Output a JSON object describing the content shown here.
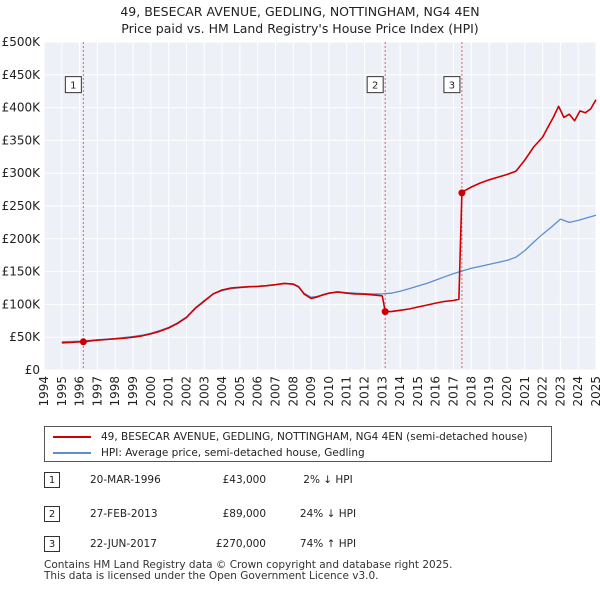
{
  "title": {
    "line1": "49, BESECAR AVENUE, GEDLING, NOTTINGHAM, NG4 4EN",
    "line2": "Price paid vs. HM Land Registry's House Price Index (HPI)"
  },
  "chart_data": {
    "type": "line",
    "title": "49, BESECAR AVENUE, GEDLING, NOTTINGHAM, NG4 4EN — Price paid vs. HM Land Registry's House Price Index (HPI)",
    "x_range": [
      1994,
      2025
    ],
    "ylim": [
      0,
      500000
    ],
    "y_ticks": [
      {
        "value": 0,
        "label": "£0"
      },
      {
        "value": 50000,
        "label": "£50K"
      },
      {
        "value": 100000,
        "label": "£100K"
      },
      {
        "value": 150000,
        "label": "£150K"
      },
      {
        "value": 200000,
        "label": "£200K"
      },
      {
        "value": 250000,
        "label": "£250K"
      },
      {
        "value": 300000,
        "label": "£300K"
      },
      {
        "value": 350000,
        "label": "£350K"
      },
      {
        "value": 400000,
        "label": "£400K"
      },
      {
        "value": 450000,
        "label": "£450K"
      },
      {
        "value": 500000,
        "label": "£500K"
      }
    ],
    "x_ticks": [
      "1994",
      "1995",
      "1996",
      "1997",
      "1998",
      "1999",
      "2000",
      "2001",
      "2002",
      "2003",
      "2004",
      "2005",
      "2006",
      "2007",
      "2008",
      "2009",
      "2010",
      "2011",
      "2012",
      "2013",
      "2014",
      "2015",
      "2016",
      "2017",
      "2018",
      "2019",
      "2020",
      "2021",
      "2022",
      "2023",
      "2024",
      "2025"
    ],
    "grid": true,
    "series": [
      {
        "name": "49, BESECAR AVENUE, GEDLING, NOTTINGHAM, NG4 4EN (semi-detached house)",
        "color": "#cc0000",
        "x": [
          1995.0,
          1995.5,
          1996.0,
          1996.21,
          1996.5,
          1997.0,
          1997.5,
          1998.0,
          1998.5,
          1999.0,
          1999.5,
          2000.0,
          2000.5,
          2001.0,
          2001.5,
          2002.0,
          2002.5,
          2003.0,
          2003.5,
          2004.0,
          2004.5,
          2005.0,
          2005.5,
          2006.0,
          2006.5,
          2007.0,
          2007.5,
          2008.0,
          2008.3,
          2008.6,
          2009.0,
          2009.3,
          2009.6,
          2010.0,
          2010.5,
          2011.0,
          2011.5,
          2012.0,
          2012.5,
          2013.0,
          2013.16,
          2013.5,
          2014.0,
          2014.5,
          2015.0,
          2015.5,
          2016.0,
          2016.5,
          2017.0,
          2017.3,
          2017.47,
          2017.6,
          2018.0,
          2018.5,
          2019.0,
          2019.5,
          2020.0,
          2020.5,
          2021.0,
          2021.5,
          2022.0,
          2022.3,
          2022.6,
          2022.9,
          2023.2,
          2023.5,
          2023.8,
          2024.1,
          2024.4,
          2024.7,
          2025.0
        ],
        "values": [
          41500,
          42000,
          43000,
          43000,
          44000,
          45500,
          46500,
          47500,
          48500,
          50000,
          52000,
          55000,
          59000,
          64000,
          71000,
          80000,
          94000,
          105000,
          116000,
          122000,
          125000,
          126000,
          127000,
          127500,
          128500,
          130000,
          132000,
          131000,
          127000,
          116000,
          109000,
          111000,
          114000,
          117000,
          119000,
          117000,
          116000,
          115500,
          114500,
          113000,
          89000,
          89000,
          91000,
          93000,
          96000,
          99000,
          102000,
          104500,
          106000,
          108000,
          270000,
          273000,
          279000,
          285000,
          290000,
          294000,
          298000,
          303000,
          320000,
          340000,
          355000,
          370000,
          385000,
          402000,
          385000,
          390000,
          380000,
          395000,
          392000,
          398000,
          412000
        ]
      },
      {
        "name": "HPI: Average price, semi-detached house, Gedling",
        "color": "#5b8fd0",
        "x": [
          1995.0,
          1995.5,
          1996.0,
          1996.5,
          1997.0,
          1997.5,
          1998.0,
          1998.5,
          1999.0,
          1999.5,
          2000.0,
          2000.5,
          2001.0,
          2001.5,
          2002.0,
          2002.5,
          2003.0,
          2003.5,
          2004.0,
          2004.5,
          2005.0,
          2005.5,
          2006.0,
          2006.5,
          2007.0,
          2007.5,
          2008.0,
          2008.3,
          2008.6,
          2009.0,
          2009.3,
          2009.6,
          2010.0,
          2010.5,
          2011.0,
          2011.5,
          2012.0,
          2012.5,
          2013.0,
          2013.5,
          2014.0,
          2014.5,
          2015.0,
          2015.5,
          2016.0,
          2016.5,
          2017.0,
          2017.5,
          2018.0,
          2018.5,
          2019.0,
          2019.5,
          2020.0,
          2020.5,
          2021.0,
          2021.5,
          2022.0,
          2022.5,
          2023.0,
          2023.5,
          2024.0,
          2024.5,
          2025.0
        ],
        "values": [
          43000,
          43500,
          44000,
          45000,
          46000,
          47000,
          48000,
          49500,
          51000,
          53000,
          56000,
          60000,
          65000,
          72000,
          81000,
          95000,
          106000,
          116000,
          121000,
          124000,
          125500,
          126500,
          127500,
          128500,
          130000,
          132000,
          130500,
          126000,
          117000,
          111000,
          112000,
          114000,
          117000,
          119000,
          118000,
          117000,
          116500,
          116000,
          116000,
          117000,
          120000,
          124000,
          128000,
          132000,
          137000,
          142000,
          147000,
          151000,
          155000,
          158000,
          161000,
          164000,
          167000,
          172000,
          182000,
          195000,
          207000,
          218000,
          230000,
          225000,
          228000,
          232000,
          236000
        ]
      }
    ],
    "sales": [
      {
        "id": "1",
        "year": 1996.21,
        "price": 43000
      },
      {
        "id": "2",
        "year": 2013.16,
        "price": 89000
      },
      {
        "id": "3",
        "year": 2017.47,
        "price": 270000
      }
    ]
  },
  "legend": {
    "property_label": "49, BESECAR AVENUE, GEDLING, NOTTINGHAM, NG4 4EN (semi-detached house)",
    "hpi_label": "HPI: Average price, semi-detached house, Gedling"
  },
  "transactions": [
    {
      "id": "1",
      "date": "20-MAR-1996",
      "price": "£43,000",
      "hpi": "2% ↓ HPI"
    },
    {
      "id": "2",
      "date": "27-FEB-2013",
      "price": "£89,000",
      "hpi": "24% ↓ HPI"
    },
    {
      "id": "3",
      "date": "22-JUN-2017",
      "price": "£270,000",
      "hpi": "74% ↑ HPI"
    }
  ],
  "footer": {
    "line1": "Contains HM Land Registry data © Crown copyright and database right 2025.",
    "line2": "This data is licensed under the Open Government Licence v3.0."
  },
  "colors": {
    "property": "#cc0000",
    "hpi": "#5b8fd0",
    "plot_bg": "#eef0f8",
    "grid": "#ffffff",
    "vline": "#e06666"
  }
}
